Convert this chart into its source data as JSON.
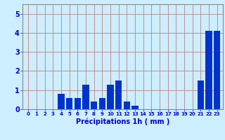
{
  "hours": [
    0,
    1,
    2,
    3,
    4,
    5,
    6,
    7,
    8,
    9,
    10,
    11,
    12,
    13,
    14,
    15,
    16,
    17,
    18,
    19,
    20,
    21,
    22,
    23
  ],
  "values": [
    0,
    0,
    0,
    0,
    0.8,
    0.6,
    0.6,
    1.3,
    0.4,
    0.6,
    1.3,
    1.5,
    0.4,
    0.2,
    0,
    0,
    0,
    0,
    0,
    0,
    0,
    1.5,
    4.1,
    4.1
  ],
  "bar_color": "#0033cc",
  "background_color": "#cceeff",
  "grid_color_h": "#c08080",
  "grid_color_v": "#c08080",
  "xlabel": "Précipitations 1h ( mm )",
  "ylim": [
    0,
    5.5
  ],
  "yticks": [
    0,
    1,
    2,
    3,
    4,
    5
  ],
  "tick_color": "#0000cc",
  "label_color": "#0000cc",
  "axis_color": "#888888",
  "xlabel_fontsize": 7,
  "xtick_fontsize": 5,
  "ytick_fontsize": 7
}
